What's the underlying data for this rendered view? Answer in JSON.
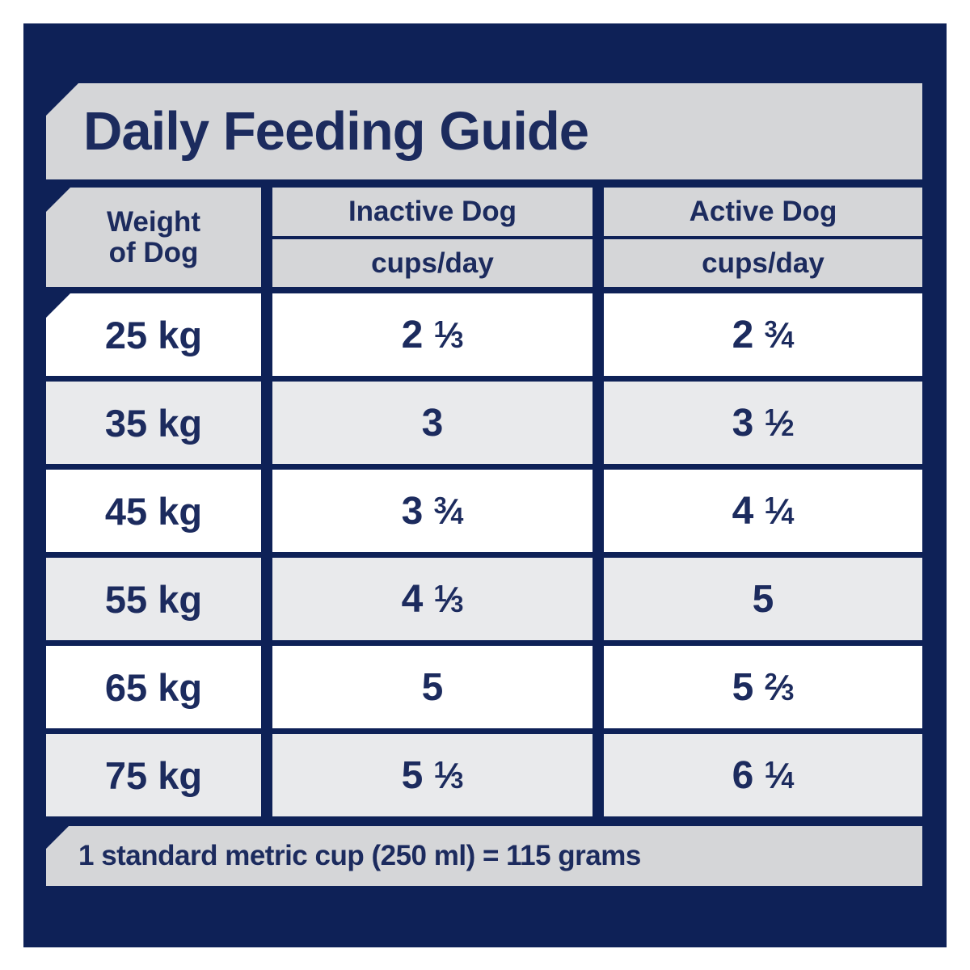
{
  "title": "Daily Feeding Guide",
  "colors": {
    "panel_navy": "#0e2157",
    "text_navy": "#1c2b5e",
    "band_gray": "#d5d6d8",
    "alt_row_gray": "#e9eaec",
    "row_white": "#ffffff",
    "page_background": "#ffffff"
  },
  "table": {
    "col1_header": [
      "Weight",
      "of Dog"
    ],
    "columns": [
      {
        "label": "Inactive Dog",
        "sublabel": "cups/day"
      },
      {
        "label": "Active Dog",
        "sublabel": "cups/day"
      }
    ],
    "rows": [
      {
        "weight": "25 kg",
        "inactive": "2 1/3",
        "active": "2 3/4"
      },
      {
        "weight": "35 kg",
        "inactive": "3",
        "active": "3 1/2"
      },
      {
        "weight": "45 kg",
        "inactive": "3 3/4",
        "active": "4 1/4"
      },
      {
        "weight": "55 kg",
        "inactive": "4 1/3",
        "active": "5"
      },
      {
        "weight": "65 kg",
        "inactive": "5",
        "active": "5 2/3"
      },
      {
        "weight": "75 kg",
        "inactive": "5 1/3",
        "active": "6 1/4"
      }
    ]
  },
  "footer": {
    "note": "1 standard metric cup (250 ml) = 115 grams"
  },
  "chart_data": {
    "type": "table",
    "title": "Daily Feeding Guide",
    "columns": [
      "Weight of Dog",
      "Inactive Dog cups/day",
      "Active Dog cups/day"
    ],
    "weights_kg": [
      25,
      35,
      45,
      55,
      65,
      75
    ],
    "series": [
      {
        "name": "Inactive Dog (cups/day)",
        "values": [
          2.333,
          3,
          3.75,
          4.333,
          5,
          5.333
        ]
      },
      {
        "name": "Active Dog (cups/day)",
        "values": [
          2.75,
          3.5,
          4.25,
          5,
          5.667,
          6.25
        ]
      }
    ],
    "note": "1 standard metric cup (250 ml) = 115 grams"
  }
}
